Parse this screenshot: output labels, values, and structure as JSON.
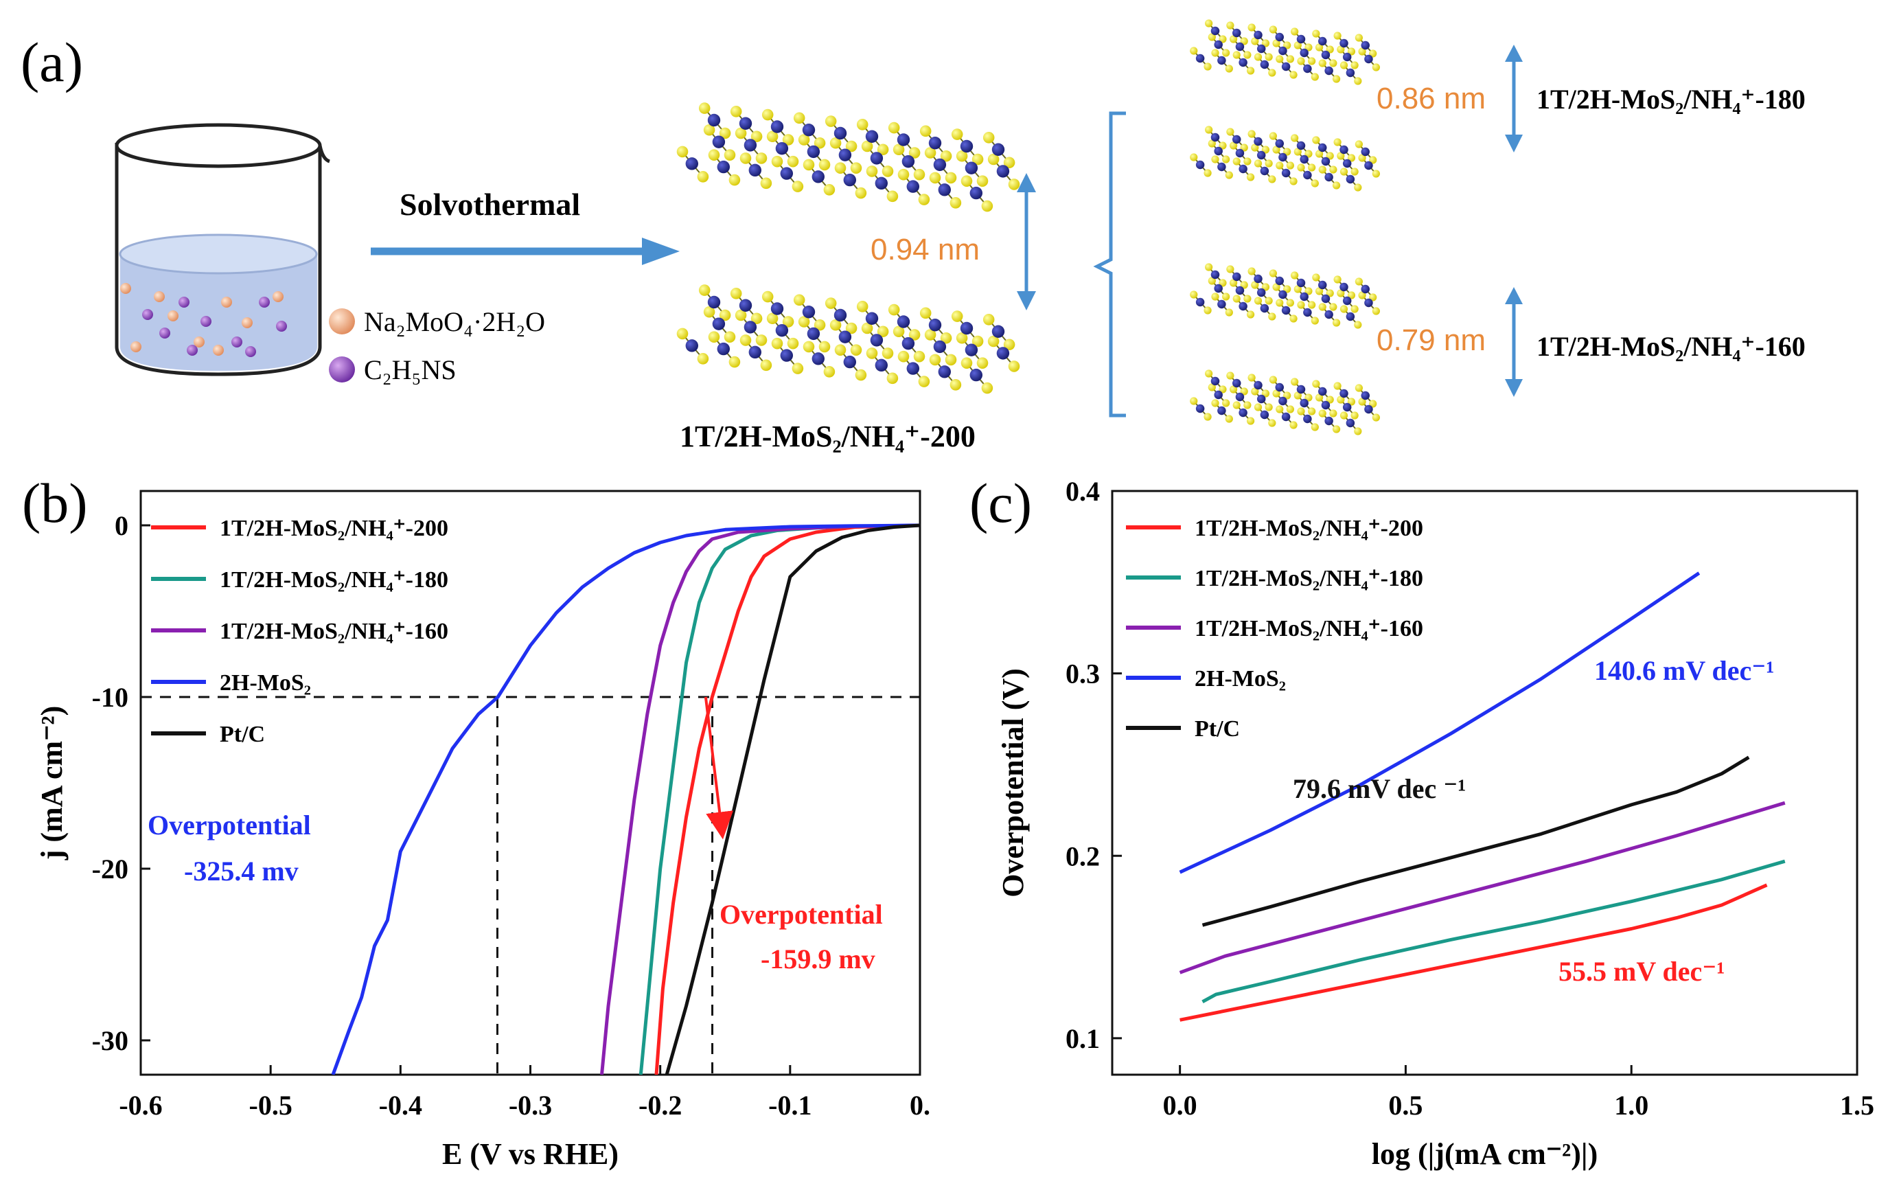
{
  "figure": {
    "panel_labels": [
      "(a)",
      "(b)",
      "(c)"
    ],
    "colors": {
      "red": "#ff2020",
      "teal": "#1a9a8a",
      "purple": "#8a20b0",
      "blue": "#2030f0",
      "black": "#111111",
      "orange": "#e88a3a",
      "arrow_blue": "#4a90d0",
      "liquid": "#b9c9ea",
      "mo_atom": "#252a8c",
      "s_atom": "#f2ef10"
    }
  },
  "panel_a": {
    "process": "Solvothermal",
    "reagent_1": "Na₂MoO₄·2H₂O",
    "reagent_2": "C₂H₅NS",
    "main_product": "1T/2H-MoS₂/NH₄⁺-200",
    "spacing_200": "0.94 nm",
    "spacing_180": "0.86 nm",
    "spacing_160": "0.79 nm",
    "product_180": "1T/2H-MoS₂/NH₄⁺-180",
    "product_160": "1T/2H-MoS₂/NH₄⁺-160"
  },
  "chart_data": [
    {
      "type": "line",
      "panel": "(b)",
      "title": "",
      "xlabel": "E (V vs RHE)",
      "ylabel": "j (mA cm⁻²)",
      "xlim": [
        -0.6,
        0.0
      ],
      "ylim": [
        -32,
        2
      ],
      "xticks": [
        -0.6,
        -0.5,
        -0.4,
        -0.3,
        -0.2,
        -0.1,
        0.0
      ],
      "xtick_labels": [
        "-0.6",
        "-0.5",
        "-0.4",
        "-0.3",
        "-0.2",
        "-0.1",
        "0."
      ],
      "yticks": [
        0,
        -10,
        -20,
        -30
      ],
      "ytick_labels": [
        "0",
        "-10",
        "-20",
        "-30"
      ],
      "legend": [
        "1T/2H-MoS₂/NH₄⁺-200",
        "1T/2H-MoS₂/NH₄⁺-180",
        "1T/2H-MoS₂/NH₄⁺-160",
        "2H-MoS₂",
        "Pt/C"
      ],
      "legend_position": "top-left",
      "series": [
        {
          "name": "1T/2H-MoS₂/NH₄⁺-200",
          "color": "#ff2020",
          "x": [
            -0.203,
            -0.198,
            -0.19,
            -0.18,
            -0.17,
            -0.16,
            -0.15,
            -0.14,
            -0.13,
            -0.12,
            -0.1,
            -0.08,
            -0.05,
            0.0
          ],
          "y": [
            -32,
            -27,
            -22,
            -17,
            -13,
            -10,
            -7.5,
            -5,
            -3,
            -1.8,
            -0.8,
            -0.4,
            -0.1,
            0
          ]
        },
        {
          "name": "1T/2H-MoS₂/NH₄⁺-180",
          "color": "#1a9a8a",
          "x": [
            -0.215,
            -0.21,
            -0.2,
            -0.19,
            -0.18,
            -0.17,
            -0.16,
            -0.15,
            -0.13,
            -0.11,
            -0.08,
            -0.05,
            0.0
          ],
          "y": [
            -32,
            -28,
            -20,
            -14,
            -8,
            -4.5,
            -2.5,
            -1.4,
            -0.6,
            -0.3,
            -0.15,
            -0.05,
            0
          ]
        },
        {
          "name": "1T/2H-MoS₂/NH₄⁺-160",
          "color": "#8a20b0",
          "x": [
            -0.245,
            -0.24,
            -0.23,
            -0.22,
            -0.21,
            -0.2,
            -0.19,
            -0.18,
            -0.17,
            -0.16,
            -0.14,
            -0.1,
            -0.05,
            0.0
          ],
          "y": [
            -32,
            -28,
            -22,
            -16,
            -11,
            -7,
            -4.5,
            -2.7,
            -1.5,
            -0.8,
            -0.4,
            -0.2,
            -0.05,
            0
          ]
        },
        {
          "name": "2H-MoS₂",
          "color": "#2030f0",
          "x": [
            -0.452,
            -0.44,
            -0.43,
            -0.42,
            -0.41,
            -0.4,
            -0.38,
            -0.36,
            -0.34,
            -0.325,
            -0.3,
            -0.28,
            -0.26,
            -0.24,
            -0.22,
            -0.2,
            -0.18,
            -0.15,
            -0.1,
            -0.05,
            0.0
          ],
          "y": [
            -32,
            -29.5,
            -27.5,
            -24.5,
            -23,
            -19,
            -16,
            -13,
            -11,
            -10,
            -7,
            -5.1,
            -3.6,
            -2.5,
            -1.6,
            -1,
            -0.6,
            -0.25,
            -0.08,
            -0.03,
            0
          ]
        },
        {
          "name": "Pt/C",
          "color": "#111111",
          "x": [
            -0.195,
            -0.18,
            -0.16,
            -0.14,
            -0.12,
            -0.1,
            -0.08,
            -0.06,
            -0.04,
            -0.02,
            0.0
          ],
          "y": [
            -32,
            -28,
            -22,
            -15.5,
            -9,
            -3,
            -1.5,
            -0.7,
            -0.3,
            -0.1,
            0
          ]
        }
      ],
      "guides": {
        "y_level": -10,
        "x_marks": [
          -0.3254,
          -0.1599
        ]
      },
      "annotations": [
        {
          "text": "Overpotential",
          "color": "#2030f0"
        },
        {
          "text": "-325.4 mv",
          "color": "#2030f0"
        },
        {
          "text": "Overpotential",
          "color": "#ff2020"
        },
        {
          "text": "-159.9 mv",
          "color": "#ff2020"
        }
      ]
    },
    {
      "type": "line",
      "panel": "(c)",
      "title": "",
      "xlabel": "log (|j(mA cm⁻²)|)",
      "ylabel": "Overpotential (V)",
      "xlim": [
        -0.15,
        1.5
      ],
      "ylim": [
        0.08,
        0.4
      ],
      "xticks": [
        0.0,
        0.5,
        1.0,
        1.5
      ],
      "xtick_labels": [
        "0.0",
        "0.5",
        "1.0",
        "1.5"
      ],
      "yticks": [
        0.1,
        0.2,
        0.3,
        0.4
      ],
      "ytick_labels": [
        "0.1",
        "0.2",
        "0.3",
        "0.4"
      ],
      "legend": [
        "1T/2H-MoS₂/NH₄⁺-200",
        "1T/2H-MoS₂/NH₄⁺-180",
        "1T/2H-MoS₂/NH₄⁺-160",
        "2H-MoS₂",
        "Pt/C"
      ],
      "legend_position": "top-left",
      "series": [
        {
          "name": "1T/2H-MoS₂/NH₄⁺-200",
          "color": "#ff2020",
          "x": [
            0.0,
            0.2,
            0.4,
            0.6,
            0.8,
            1.0,
            1.1,
            1.2,
            1.3
          ],
          "y": [
            0.11,
            0.12,
            0.13,
            0.14,
            0.15,
            0.16,
            0.166,
            0.173,
            0.184
          ]
        },
        {
          "name": "1T/2H-MoS₂/NH₄⁺-180",
          "color": "#1a9a8a",
          "x": [
            0.05,
            0.08,
            0.2,
            0.4,
            0.6,
            0.8,
            1.0,
            1.2,
            1.34
          ],
          "y": [
            0.12,
            0.124,
            0.131,
            0.143,
            0.154,
            0.164,
            0.175,
            0.187,
            0.197
          ]
        },
        {
          "name": "1T/2H-MoS₂/NH₄⁺-160",
          "color": "#8a20b0",
          "x": [
            0.0,
            0.1,
            0.3,
            0.5,
            0.7,
            0.9,
            1.1,
            1.34
          ],
          "y": [
            0.136,
            0.145,
            0.158,
            0.171,
            0.184,
            0.197,
            0.211,
            0.229
          ]
        },
        {
          "name": "2H-MoS₂",
          "color": "#2030f0",
          "x": [
            0.0,
            0.2,
            0.4,
            0.6,
            0.8,
            1.0,
            1.15
          ],
          "y": [
            0.191,
            0.214,
            0.239,
            0.267,
            0.297,
            0.33,
            0.355
          ]
        },
        {
          "name": "Pt/C",
          "color": "#111111",
          "x": [
            0.05,
            0.2,
            0.4,
            0.6,
            0.8,
            1.0,
            1.1,
            1.2,
            1.26
          ],
          "y": [
            0.162,
            0.172,
            0.186,
            0.199,
            0.212,
            0.228,
            0.235,
            0.245,
            0.254
          ]
        }
      ],
      "annotations": [
        {
          "text": "140.6 mV dec⁻¹",
          "color": "#2030f0"
        },
        {
          "text": "79.6 mV dec ⁻¹",
          "color": "#111111"
        },
        {
          "text": "55.5 mV dec⁻¹",
          "color": "#ff2020"
        }
      ]
    }
  ]
}
